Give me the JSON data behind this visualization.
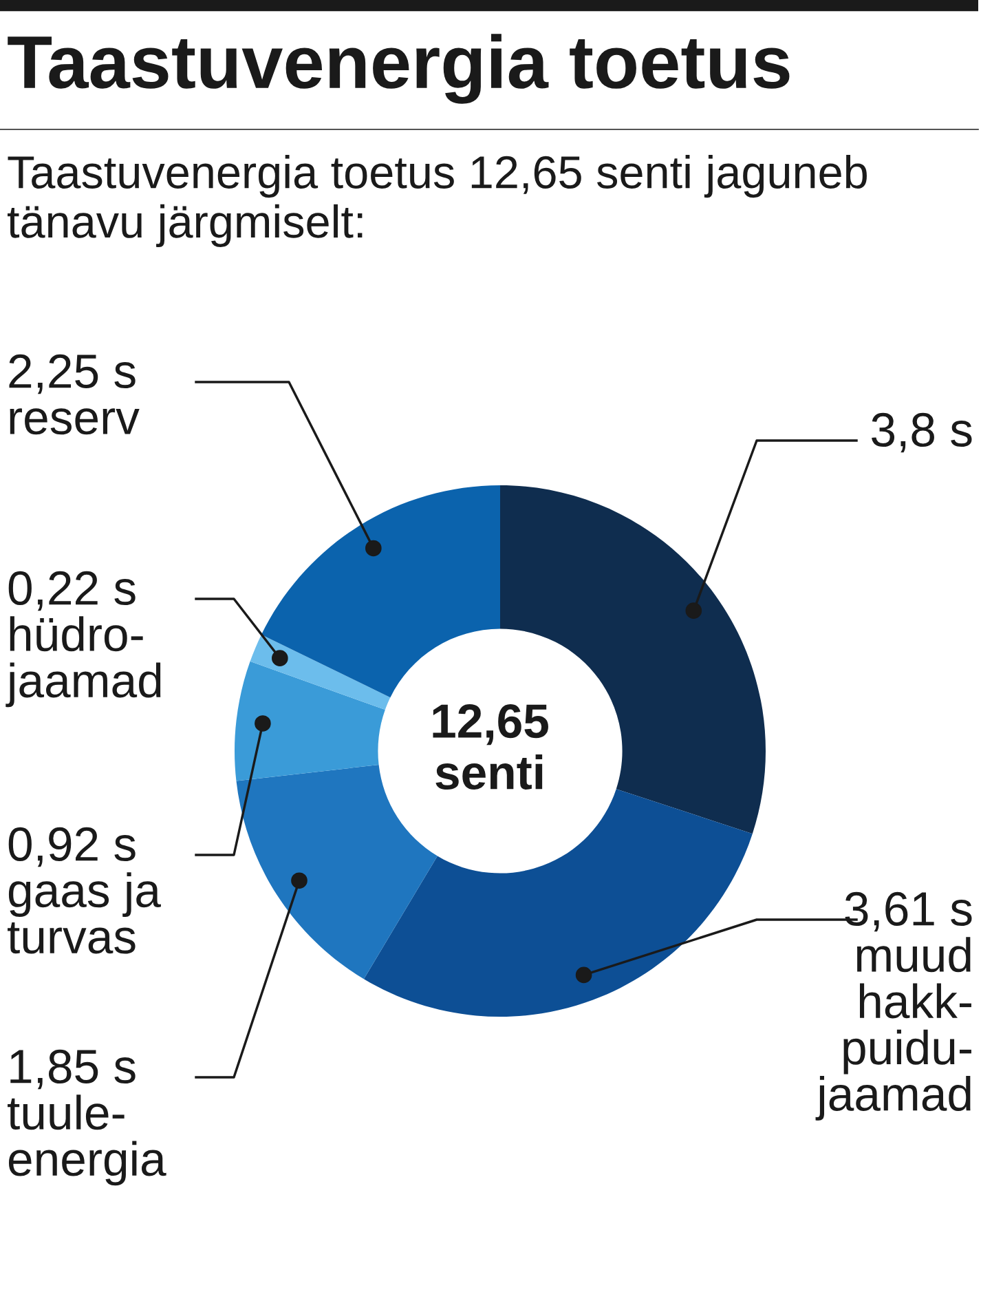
{
  "chart_data": {
    "type": "donut",
    "title": "Taastuvenergia toetus",
    "subtitle": "Taastuvenergia toetus 12,65 senti jaguneb tänavu järgmiselt:",
    "categories": [
      null,
      "muud\nhakk-\npuidu-\njaamad",
      "tuule-\nenergia",
      "gaas ja\nturvas",
      "hüdro-\njaamad",
      "reserv"
    ],
    "values": [
      3.8,
      3.61,
      1.85,
      0.92,
      0.22,
      2.25
    ],
    "value_labels": [
      "3,8 s",
      "3,61 s",
      "1,85 s",
      "0,92 s",
      "0,22 s",
      "2,25 s"
    ],
    "colors": [
      "#0f2d4f",
      "#0d4f95",
      "#1f76bf",
      "#3a9bd8",
      "#6cbdec",
      "#0b63ad"
    ],
    "annotations": [
      "12,65\nsenti"
    ],
    "legend": false
  }
}
